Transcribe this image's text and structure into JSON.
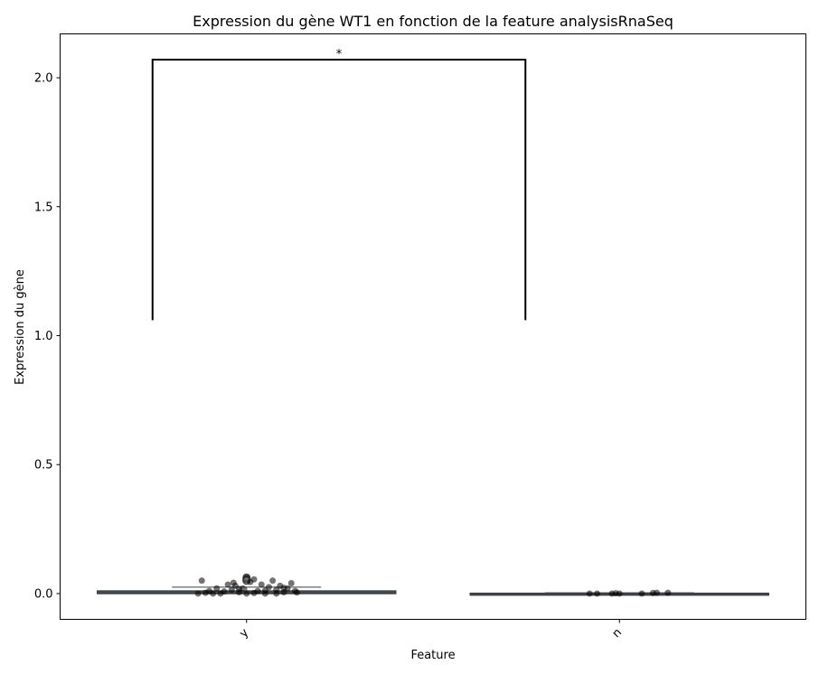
{
  "chart_data": {
    "type": "box",
    "title": "Expression du gène WT1 en fonction de la feature analysisRnaSeq",
    "xlabel": "Feature",
    "ylabel": "Expression du gène",
    "categories": [
      "y",
      "n"
    ],
    "ylim": [
      -0.1,
      2.17
    ],
    "yticks": [
      0.0,
      0.5,
      1.0,
      1.5,
      2.0
    ],
    "ytick_labels": [
      "0.0",
      "0.5",
      "1.0",
      "1.5",
      "2.0"
    ],
    "grid": false,
    "box_color": "#3d6a94",
    "boxes": [
      {
        "category": "y",
        "q1": 0.0,
        "median": 0.003,
        "q3": 0.01,
        "whisker_low": 0.0,
        "whisker_high": 0.025,
        "outliers": [
          0.058,
          0.062,
          0.055,
          0.05,
          0.05
        ]
      },
      {
        "category": "n",
        "q1": 0.0,
        "median": 0.0,
        "q3": 0.001,
        "whisker_low": 0.0,
        "whisker_high": 0.003,
        "outliers": []
      }
    ],
    "points": {
      "y": [
        [
          -0.12,
          0.05
        ],
        [
          -0.08,
          0.02
        ],
        [
          -0.1,
          0.01
        ],
        [
          -0.07,
          0.0
        ],
        [
          -0.05,
          0.035
        ],
        [
          -0.04,
          0.015
        ],
        [
          -0.03,
          0.03
        ],
        [
          -0.02,
          0.005
        ],
        [
          -0.01,
          0.02
        ],
        [
          0.0,
          0.06
        ],
        [
          0.01,
          0.045
        ],
        [
          0.02,
          0.055
        ],
        [
          0.03,
          0.01
        ],
        [
          0.04,
          0.035
        ],
        [
          0.05,
          0.0
        ],
        [
          0.06,
          0.025
        ],
        [
          0.07,
          0.05
        ],
        [
          0.08,
          0.015
        ],
        [
          0.09,
          0.03
        ],
        [
          0.1,
          0.005
        ],
        [
          0.11,
          0.02
        ],
        [
          0.12,
          0.04
        ],
        [
          -0.11,
          0.003
        ],
        [
          -0.06,
          0.008
        ],
        [
          0.13,
          0.01
        ],
        [
          -0.09,
          0.0
        ],
        [
          0.0,
          0.0
        ],
        [
          0.02,
          0.002
        ],
        [
          0.05,
          0.012
        ],
        [
          -0.02,
          0.018
        ],
        [
          0.08,
          0.0
        ],
        [
          0.1,
          0.022
        ],
        [
          -0.13,
          0.0
        ],
        [
          0.135,
          0.004
        ],
        [
          -0.035,
          0.042
        ]
      ],
      "n": [
        [
          -0.08,
          0.0
        ],
        [
          -0.06,
          0.0
        ],
        [
          -0.02,
          0.0
        ],
        [
          -0.01,
          0.001
        ],
        [
          0.06,
          0.0
        ],
        [
          0.09,
          0.002
        ],
        [
          0.1,
          0.003
        ],
        [
          0.13,
          0.003
        ],
        [
          0.0,
          0.0
        ]
      ]
    },
    "significance": {
      "label": "*",
      "from": "y",
      "to": "n",
      "y_low": 1.06,
      "y_high": 2.07
    }
  }
}
